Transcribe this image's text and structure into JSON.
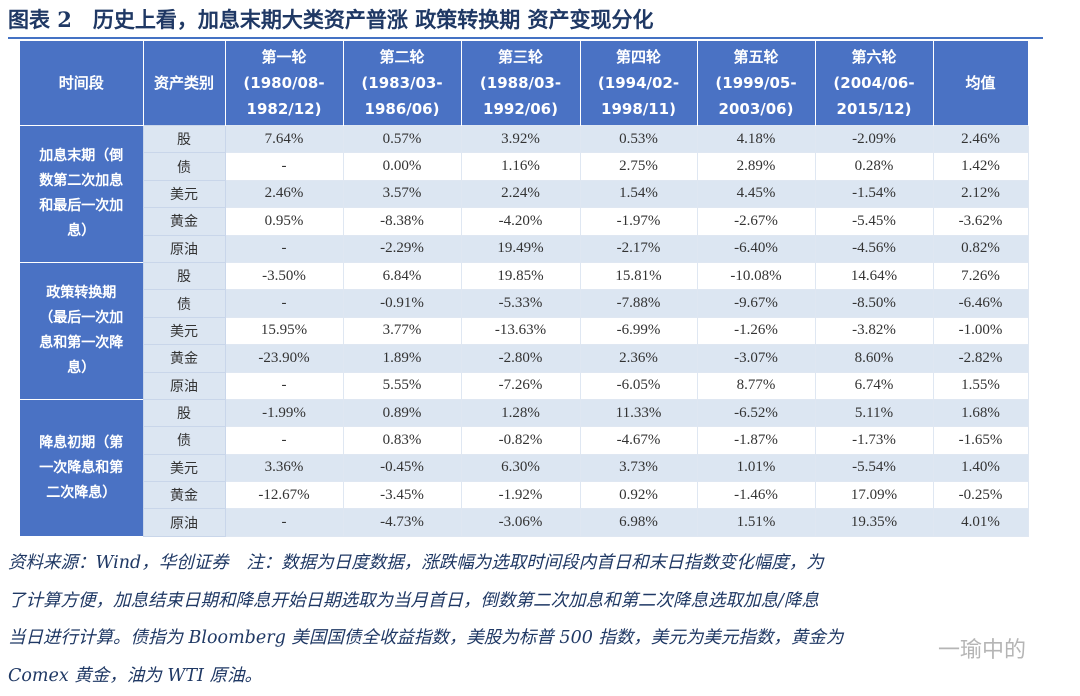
{
  "title": "图表 2　历史上看，加息末期大类资产普涨 政策转换期 资产变现分化",
  "table": {
    "header": [
      [
        "时间段"
      ],
      [
        "资产类别"
      ],
      [
        "第一轮",
        "(1980/08-",
        "1982/12)"
      ],
      [
        "第二轮",
        "(1983/03-",
        "1986/06)"
      ],
      [
        "第三轮",
        "(1988/03-",
        "1992/06)"
      ],
      [
        "第四轮",
        "(1994/02-",
        "1998/11)"
      ],
      [
        "第五轮",
        "(1999/05-",
        "2003/06)"
      ],
      [
        "第六轮",
        "(2004/06-",
        "2015/12)"
      ],
      [
        "均值"
      ]
    ],
    "groups": [
      {
        "label": [
          "加息末期（倒",
          "数第二次加息",
          "和最后一次加",
          "息）"
        ],
        "rows": [
          {
            "asset": "股",
            "values": [
              "7.64%",
              "0.57%",
              "3.92%",
              "0.53%",
              "4.18%",
              "-2.09%",
              "2.46%"
            ]
          },
          {
            "asset": "债",
            "values": [
              "-",
              "0.00%",
              "1.16%",
              "2.75%",
              "2.89%",
              "0.28%",
              "1.42%"
            ]
          },
          {
            "asset": "美元",
            "values": [
              "2.46%",
              "3.57%",
              "2.24%",
              "1.54%",
              "4.45%",
              "-1.54%",
              "2.12%"
            ]
          },
          {
            "asset": "黄金",
            "values": [
              "0.95%",
              "-8.38%",
              "-4.20%",
              "-1.97%",
              "-2.67%",
              "-5.45%",
              "-3.62%"
            ]
          },
          {
            "asset": "原油",
            "values": [
              "-",
              "-2.29%",
              "19.49%",
              "-2.17%",
              "-6.40%",
              "-4.56%",
              "0.82%"
            ]
          }
        ]
      },
      {
        "label": [
          "政策转换期",
          "（最后一次加",
          "息和第一次降",
          "息）"
        ],
        "rows": [
          {
            "asset": "股",
            "values": [
              "-3.50%",
              "6.84%",
              "19.85%",
              "15.81%",
              "-10.08%",
              "14.64%",
              "7.26%"
            ]
          },
          {
            "asset": "债",
            "values": [
              "-",
              "-0.91%",
              "-5.33%",
              "-7.88%",
              "-9.67%",
              "-8.50%",
              "-6.46%"
            ]
          },
          {
            "asset": "美元",
            "values": [
              "15.95%",
              "3.77%",
              "-13.63%",
              "-6.99%",
              "-1.26%",
              "-3.82%",
              "-1.00%"
            ]
          },
          {
            "asset": "黄金",
            "values": [
              "-23.90%",
              "1.89%",
              "-2.80%",
              "2.36%",
              "-3.07%",
              "8.60%",
              "-2.82%"
            ]
          },
          {
            "asset": "原油",
            "values": [
              "-",
              "5.55%",
              "-7.26%",
              "-6.05%",
              "8.77%",
              "6.74%",
              "1.55%"
            ]
          }
        ]
      },
      {
        "label": [
          "降息初期（第",
          "一次降息和第",
          "二次降息）"
        ],
        "rows": [
          {
            "asset": "股",
            "values": [
              "-1.99%",
              "0.89%",
              "1.28%",
              "11.33%",
              "-6.52%",
              "5.11%",
              "1.68%"
            ]
          },
          {
            "asset": "债",
            "values": [
              "-",
              "0.83%",
              "-0.82%",
              "-4.67%",
              "-1.87%",
              "-1.73%",
              "-1.65%"
            ]
          },
          {
            "asset": "美元",
            "values": [
              "3.36%",
              "-0.45%",
              "6.30%",
              "3.73%",
              "1.01%",
              "-5.54%",
              "1.40%"
            ]
          },
          {
            "asset": "黄金",
            "values": [
              "-12.67%",
              "-3.45%",
              "-1.92%",
              "0.92%",
              "-1.46%",
              "17.09%",
              "-0.25%"
            ]
          },
          {
            "asset": "原油",
            "values": [
              "-",
              "-4.73%",
              "-3.06%",
              "6.98%",
              "1.51%",
              "19.35%",
              "4.01%"
            ]
          }
        ]
      }
    ]
  },
  "footnote": [
    "资料来源：Wind，华创证券　注：数据为日度数据，涨跌幅为选取时间段内首日和末日指数变化幅度，为",
    "了计算方便，加息结束日期和降息开始日期选取为当月首日，倒数第二次加息和第二次降息选取加息/降息",
    "当日进行计算。债指为 Bloomberg 美国国债全收益指数，美股为标普 500 指数，美元为美元指数，黄金为",
    "Comex 黄金，油为 WTI 原油。"
  ],
  "watermark": "一瑜中的"
}
